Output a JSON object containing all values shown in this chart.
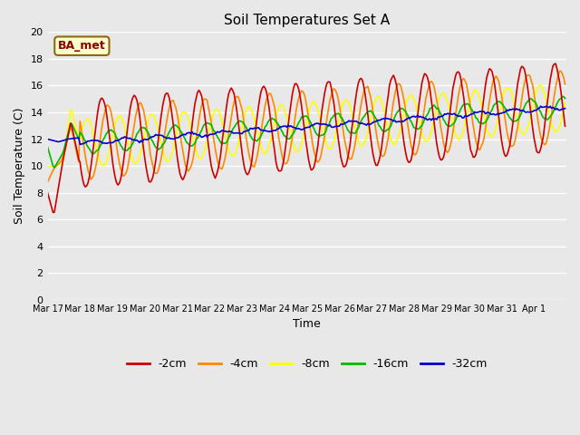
{
  "title": "Soil Temperatures Set A",
  "xlabel": "Time",
  "ylabel": "Soil Temperature (C)",
  "ylim": [
    0,
    20
  ],
  "background_color": "#e8e8e8",
  "plot_bg_color": "#e8e8e8",
  "grid_color": "#ffffff",
  "series": {
    "-2cm": {
      "color": "#cc0000",
      "lw": 1.5
    },
    "-4cm": {
      "color": "#ff8800",
      "lw": 1.5
    },
    "-8cm": {
      "color": "#ffff00",
      "lw": 1.5
    },
    "-16cm": {
      "color": "#00bb00",
      "lw": 1.5
    },
    "-32cm": {
      "color": "#0000cc",
      "lw": 1.5
    }
  },
  "xtick_labels": [
    "Mar 17",
    "Mar 18",
    "Mar 19",
    "Mar 20",
    "Mar 21",
    "Mar 22",
    "Mar 23",
    "Mar 24",
    "Mar 25",
    "Mar 26",
    "Mar 27",
    "Mar 28",
    "Mar 29",
    "Mar 30",
    "Mar 31",
    "Apr 1"
  ],
  "ytick_values": [
    0,
    2,
    4,
    6,
    8,
    10,
    12,
    14,
    16,
    18,
    20
  ],
  "annotation_text": "BA_met"
}
